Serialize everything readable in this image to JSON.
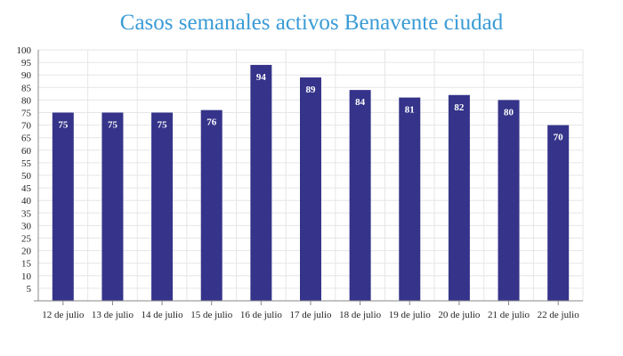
{
  "chart_data": {
    "type": "bar",
    "title": "Casos semanales activos Benavente ciudad",
    "categories": [
      "12 de julio",
      "13 de julio",
      "14 de julio",
      "15 de julio",
      "16 de julio",
      "17 de julio",
      "18 de julio",
      "19 de julio",
      "20 de julio",
      "21 de julio",
      "22 de julio"
    ],
    "values": [
      75,
      75,
      75,
      76,
      94,
      89,
      84,
      81,
      82,
      80,
      70
    ],
    "ylim": [
      0,
      100
    ],
    "yticks": [
      5,
      10,
      15,
      20,
      25,
      30,
      35,
      40,
      45,
      50,
      55,
      60,
      65,
      70,
      75,
      80,
      85,
      90,
      95,
      100
    ],
    "xlabel": "",
    "ylabel": "",
    "grid": true,
    "legend": "none",
    "colors": {
      "bar": "#35348a",
      "title": "#3a9bd6",
      "grid": "#e6e6e6",
      "axis": "#888888"
    }
  }
}
